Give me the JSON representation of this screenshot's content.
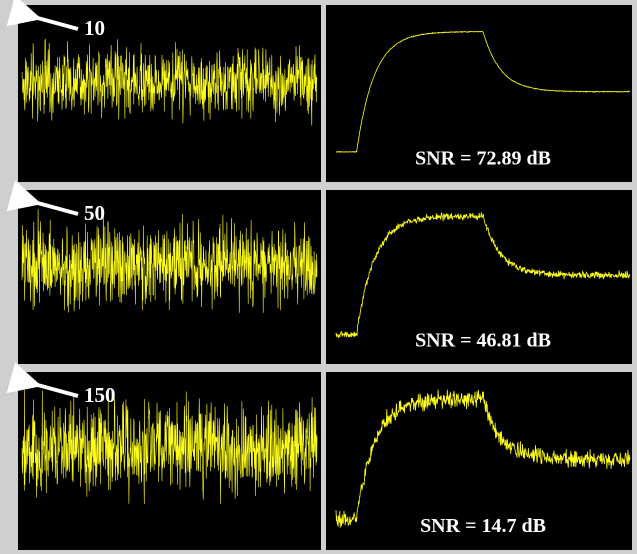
{
  "panels": [
    {
      "noise_level": "10",
      "snr": "SNR = 72.89 dB"
    },
    {
      "noise_level": "50",
      "snr": "SNR = 46.81 dB"
    },
    {
      "noise_level": "150",
      "snr": "SNR = 14.7 dB"
    }
  ]
}
